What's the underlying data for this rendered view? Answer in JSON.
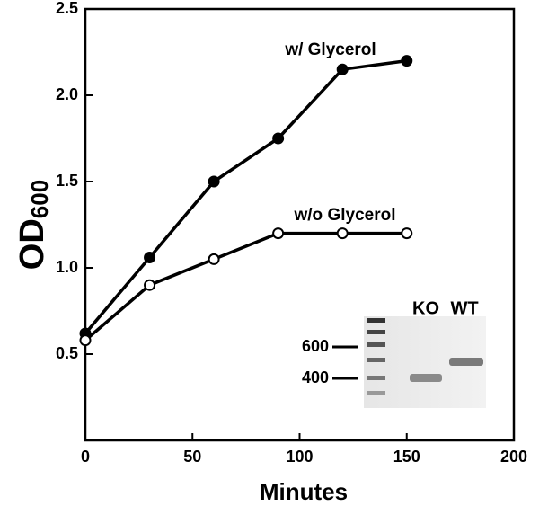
{
  "chart_data": {
    "type": "line",
    "x_label": "Minutes",
    "y_label": {
      "main": "OD",
      "subscript": "600"
    },
    "series": [
      {
        "name": "w/ Glycerol",
        "color": "#000000",
        "marker_fill": "#000000",
        "x": [
          0,
          30,
          60,
          90,
          120,
          150
        ],
        "values": [
          0.62,
          1.06,
          1.5,
          1.75,
          2.15,
          2.2
        ]
      },
      {
        "name": "w/o Glycerol",
        "color": "#000000",
        "marker_fill": "#ffffff",
        "x": [
          0,
          30,
          60,
          90,
          120,
          150
        ],
        "values": [
          0.58,
          0.9,
          1.05,
          1.2,
          1.2,
          1.2
        ]
      }
    ],
    "xlim": [
      0,
      200
    ],
    "xticks": [
      0,
      50,
      100,
      150,
      200
    ],
    "ylim": [
      0,
      2.5
    ],
    "yticks": [
      0.5,
      {
        "value": 1.0,
        "label": "1.0"
      },
      1.5,
      {
        "value": 2.0,
        "label": "2.0"
      },
      2.5
    ],
    "annotations": [
      "KO",
      "WT",
      "600",
      "400"
    ]
  }
}
